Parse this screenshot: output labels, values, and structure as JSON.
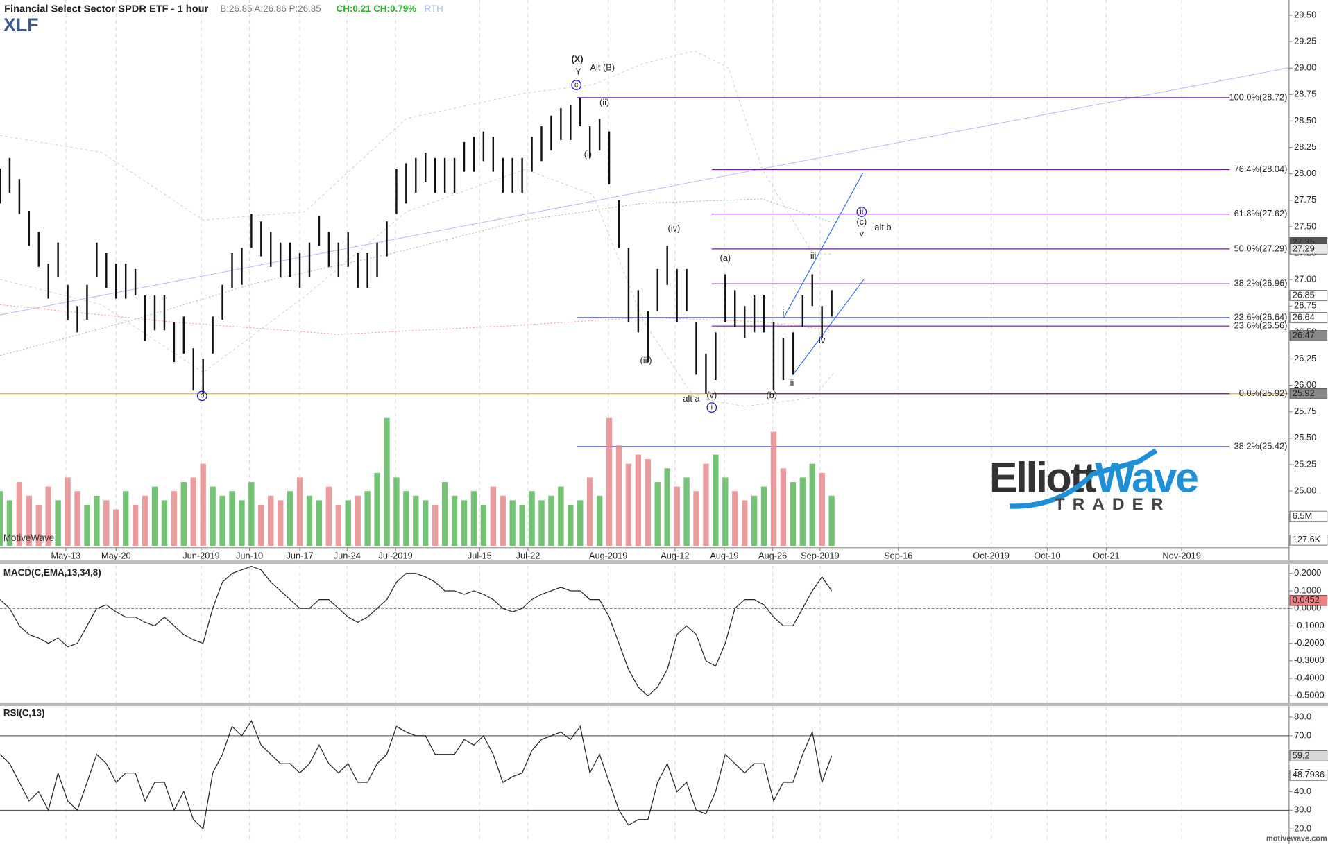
{
  "chart_data": [
    {
      "type": "ohlc",
      "title": "Financial Select Sector SPDR ETF - 1 hour",
      "symbol": "XLF",
      "quote": "B:26.85 A:26.86 P:26.85",
      "change": "CH:0.21 CH:0.79%",
      "session": "RTH",
      "watermark": "MotiveWave",
      "footer": "motivewave.com",
      "logo": {
        "text1": "Elliott",
        "text2": "Wave",
        "tagline": "TRADER"
      },
      "bar_color": "#111111",
      "high": [
        28.05,
        28.15,
        27.95,
        27.65,
        27.45,
        27.15,
        27.35,
        26.95,
        26.75,
        26.95,
        27.35,
        27.25,
        27.15,
        27.15,
        27.1,
        26.85,
        26.85,
        26.85,
        26.6,
        26.65,
        26.35,
        26.25,
        26.65,
        26.95,
        27.25,
        27.3,
        27.62,
        27.55,
        27.45,
        27.35,
        27.35,
        27.25,
        27.35,
        27.6,
        27.45,
        27.35,
        27.45,
        27.25,
        27.25,
        27.35,
        27.55,
        28.05,
        28.1,
        28.15,
        28.2,
        28.15,
        28.15,
        28.15,
        28.3,
        28.35,
        28.4,
        28.35,
        28.15,
        28.15,
        28.15,
        28.35,
        28.45,
        28.55,
        28.62,
        28.65,
        28.72,
        28.45,
        28.52,
        28.4,
        27.75,
        27.3,
        26.9,
        26.7,
        27.1,
        27.32,
        27.1,
        27.1,
        26.6,
        26.3,
        26.5,
        27.05,
        26.9,
        26.75,
        26.85,
        26.85,
        26.6,
        26.45,
        26.5,
        26.85,
        27.05,
        26.75,
        26.9
      ],
      "low": [
        27.72,
        27.82,
        27.62,
        27.32,
        27.12,
        26.82,
        27.02,
        26.62,
        26.5,
        26.62,
        27.02,
        26.92,
        26.82,
        26.82,
        26.85,
        26.42,
        26.52,
        26.52,
        26.22,
        26.3,
        25.95,
        25.92,
        26.3,
        26.62,
        26.92,
        26.95,
        27.3,
        27.22,
        27.12,
        27.02,
        27.02,
        26.92,
        27.02,
        27.32,
        27.12,
        27.02,
        27.12,
        26.92,
        26.92,
        27.02,
        27.22,
        27.62,
        27.72,
        27.82,
        27.92,
        27.82,
        27.82,
        27.82,
        28.02,
        28.02,
        28.12,
        28.02,
        27.82,
        27.82,
        27.82,
        28.02,
        28.12,
        28.22,
        28.32,
        28.32,
        28.45,
        28.15,
        28.22,
        27.9,
        27.3,
        26.6,
        26.5,
        26.22,
        26.7,
        26.95,
        26.6,
        26.7,
        26.1,
        25.92,
        26.05,
        26.6,
        26.55,
        26.45,
        26.5,
        26.5,
        25.95,
        26.05,
        26.1,
        26.55,
        26.75,
        26.45,
        26.65
      ],
      "volume": [
        12,
        10,
        14,
        11,
        9,
        13,
        10,
        15,
        12,
        9,
        11,
        10,
        8,
        12,
        9,
        11,
        13,
        10,
        12,
        14,
        15,
        18,
        13,
        11,
        12,
        10,
        14,
        9,
        11,
        10,
        12,
        15,
        11,
        10,
        13,
        9,
        10,
        11,
        12,
        16,
        28,
        15,
        12,
        11,
        10,
        9,
        14,
        11,
        10,
        12,
        9,
        13,
        11,
        10,
        9,
        12,
        10,
        11,
        13,
        9,
        10,
        15,
        11,
        28,
        22,
        18,
        20,
        19,
        14,
        17,
        13,
        15,
        12,
        18,
        20,
        15,
        12,
        10,
        11,
        13,
        25,
        17,
        14,
        15,
        18,
        16,
        11
      ],
      "volume_up_color": "#5cb85c",
      "volume_down_color": "#e88a8a",
      "vlim": [
        0,
        30
      ],
      "xlim": [
        0,
        133.3
      ],
      "xticks": [
        {
          "value": 6.8,
          "label": "May-13"
        },
        {
          "value": 12,
          "label": "May-20"
        },
        {
          "value": 20.8,
          "label": "Jun-2019"
        },
        {
          "value": 25.8,
          "label": "Jun-10"
        },
        {
          "value": 31,
          "label": "Jun-17"
        },
        {
          "value": 35.9,
          "label": "Jun-24"
        },
        {
          "value": 40.9,
          "label": "Jul-2019"
        },
        {
          "value": 49.6,
          "label": "Jul-15"
        },
        {
          "value": 54.6,
          "label": "Jul-22"
        },
        {
          "value": 62.9,
          "label": "Aug-2019"
        },
        {
          "value": 69.8,
          "label": "Aug-12"
        },
        {
          "value": 74.9,
          "label": "Aug-19"
        },
        {
          "value": 79.9,
          "label": "Aug-26"
        },
        {
          "value": 84.8,
          "label": "Sep-2019"
        },
        {
          "value": 92.9,
          "label": "Sep-16"
        },
        {
          "value": 102.5,
          "label": "Oct-2019"
        },
        {
          "value": 108.3,
          "label": "Oct-10"
        },
        {
          "value": 114.4,
          "label": "Oct-21"
        },
        {
          "value": 122.2,
          "label": "Nov-2019"
        }
      ],
      "ylim": [
        24.48,
        29.644
      ],
      "yticks": [
        24.75,
        {
          "value": 25,
          "label": "25.00"
        },
        25.25,
        {
          "value": 25.5,
          "label": "25.50"
        },
        25.75,
        {
          "value": 26,
          "label": "26.00"
        },
        26.25,
        {
          "value": 26.5,
          "label": "26.50"
        },
        26.75,
        {
          "value": 27,
          "label": "27.00"
        },
        27.25,
        {
          "value": 27.5,
          "label": "27.50"
        },
        27.75,
        {
          "value": 28,
          "label": "28.00"
        },
        28.25,
        {
          "value": 28.5,
          "label": "28.50"
        },
        28.75,
        {
          "value": 29,
          "label": "29.00"
        },
        29.25,
        {
          "value": 29.5,
          "label": "29.50"
        }
      ],
      "fib": [
        {
          "label": "100.0%(28.72)",
          "value": 28.72,
          "start": 59.7,
          "color": "#6a1b9a"
        },
        {
          "label": "76.4%(28.04)",
          "value": 28.04,
          "start": 73.6,
          "color": "#6a1b9a"
        },
        {
          "label": "61.8%(27.62)",
          "value": 27.62,
          "start": 73.6,
          "color": "#6a1b9a"
        },
        {
          "label": "50.0%(27.29)",
          "value": 27.29,
          "start": 73.6,
          "color": "#6a1b9a"
        },
        {
          "label": "38.2%(26.96)",
          "value": 26.96,
          "start": 73.6,
          "color": "#6a1b9a"
        },
        {
          "label": "23.6%(26.64)",
          "value": 26.64,
          "start": 59.7,
          "color": "#2233cc"
        },
        {
          "label": "23.6%(26.56)",
          "value": 26.56,
          "start": 73.6,
          "color": "#6a1b9a"
        },
        {
          "label": "0.0%(25.92)",
          "value": 25.92,
          "start": 73.6,
          "color": "#6a1b9a"
        },
        {
          "label": "38.2%(25.42)",
          "value": 25.42,
          "start": 59.7,
          "color": "#2233cc"
        }
      ],
      "support_line": {
        "value": 25.92,
        "color": "#f2b400"
      },
      "annotations": [
        {
          "text": "(X)",
          "x": 59.7,
          "y": 29.08,
          "color": "#1010cc",
          "circled": false
        },
        {
          "text": "Y",
          "x": 59.8,
          "y": 28.96,
          "color": "#1010cc",
          "circled": false
        },
        {
          "text": "c",
          "x": 59.6,
          "y": 28.84,
          "color": "#1010cc",
          "circled": true
        },
        {
          "text": "Alt (B)",
          "x": 62.3,
          "y": 29.0,
          "color": "#e01010",
          "circled": false
        },
        {
          "text": "(ii)",
          "x": 62.5,
          "y": 28.67,
          "color": "#1010cc",
          "circled": false
        },
        {
          "text": "(i)",
          "x": 60.8,
          "y": 28.18,
          "color": "#1010cc",
          "circled": false
        },
        {
          "text": "(iv)",
          "x": 69.7,
          "y": 27.48,
          "color": "#1010cc",
          "circled": false
        },
        {
          "text": "(iii)",
          "x": 66.8,
          "y": 26.23,
          "color": "#1010cc",
          "circled": false
        },
        {
          "text": "(a)",
          "x": 75.0,
          "y": 27.2,
          "color": "#1010cc",
          "circled": false
        },
        {
          "text": "(v)",
          "x": 73.6,
          "y": 25.9,
          "color": "#1010cc",
          "circled": false
        },
        {
          "text": "i",
          "x": 73.6,
          "y": 25.79,
          "color": "#1010cc",
          "circled": true
        },
        {
          "text": "alt a",
          "x": 71.5,
          "y": 25.87,
          "color": "#e01010",
          "circled": false
        },
        {
          "text": "(b)",
          "x": 79.8,
          "y": 25.9,
          "color": "#1010cc",
          "circled": false
        },
        {
          "text": "ii",
          "x": 81.9,
          "y": 26.02,
          "color": "#1010cc",
          "circled": false
        },
        {
          "text": "i",
          "x": 81.0,
          "y": 26.68,
          "color": "#1010cc",
          "circled": false
        },
        {
          "text": "iii",
          "x": 84.1,
          "y": 27.22,
          "color": "#1010cc",
          "circled": false
        },
        {
          "text": "iv",
          "x": 85.0,
          "y": 26.42,
          "color": "#1010cc",
          "circled": false
        },
        {
          "text": "ii",
          "x": 89.1,
          "y": 27.64,
          "color": "#1010cc",
          "circled": true
        },
        {
          "text": "(c)",
          "x": 89.1,
          "y": 27.54,
          "color": "#1010cc",
          "circled": false
        },
        {
          "text": "v",
          "x": 89.1,
          "y": 27.43,
          "color": "#1010cc",
          "circled": false
        },
        {
          "text": "alt b",
          "x": 91.3,
          "y": 27.49,
          "color": "#e01010",
          "circled": false
        },
        {
          "text": "b",
          "x": 20.9,
          "y": 25.9,
          "color": "#1010cc",
          "circled": true
        }
      ],
      "markers": [
        {
          "value": 27.35,
          "fill": "#555555",
          "text_color": "#ffffff"
        },
        {
          "value": 27.29,
          "fill": "#e8e8e8",
          "text_color": "#333333"
        },
        {
          "value": 26.85,
          "fill": "#ffffff",
          "text_color": "#111111"
        },
        {
          "value": 26.64,
          "fill": "#ffffff",
          "text_color": "#111111"
        },
        {
          "value": 26.47,
          "fill": "#888888",
          "text_color": "#ffffff"
        },
        {
          "value": 25.92,
          "fill": "#888888",
          "text_color": "#ffffff"
        }
      ],
      "volume_markers": [
        {
          "value": 6.5,
          "label": "6.5M"
        },
        {
          "value": 0.1276,
          "label": "127.6K"
        }
      ]
    },
    {
      "type": "line",
      "title": "MACD(C,EMA,13,34,8)",
      "color": "#222222",
      "values": [
        0.05,
        0,
        -0.1,
        -0.15,
        -0.17,
        -0.2,
        -0.17,
        -0.22,
        -0.2,
        -0.1,
        0,
        0.02,
        -0.02,
        -0.05,
        -0.05,
        -0.08,
        -0.1,
        -0.05,
        -0.1,
        -0.15,
        -0.18,
        -0.2,
        0,
        0.15,
        0.2,
        0.22,
        0.24,
        0.22,
        0.15,
        0.1,
        0.05,
        0,
        0,
        0.05,
        0.05,
        0,
        -0.05,
        -0.08,
        -0.05,
        0,
        0.05,
        0.15,
        0.2,
        0.2,
        0.18,
        0.15,
        0.1,
        0.1,
        0.08,
        0.1,
        0.08,
        0.05,
        0,
        -0.02,
        0,
        0.05,
        0.08,
        0.1,
        0.12,
        0.1,
        0.1,
        0.05,
        0.05,
        -0.05,
        -0.2,
        -0.35,
        -0.45,
        -0.5,
        -0.45,
        -0.35,
        -0.15,
        -0.1,
        -0.15,
        -0.3,
        -0.33,
        -0.2,
        0,
        0.05,
        0.05,
        0.02,
        -0.05,
        -0.1,
        -0.1,
        0,
        0.1,
        0.18,
        0.1
      ],
      "ylim": [
        -0.539,
        0.245
      ],
      "yticks": [
        {
          "value": 0.2,
          "label": "0.2000"
        },
        {
          "value": 0.1,
          "label": "0.1000"
        },
        {
          "value": 0,
          "label": "0.0000"
        },
        {
          "value": -0.1,
          "label": "-0.1000"
        },
        {
          "value": -0.2,
          "label": "-0.2000"
        },
        {
          "value": -0.3,
          "label": "-0.3000"
        },
        {
          "value": -0.4,
          "label": "-0.4000"
        },
        {
          "value": -0.5,
          "label": "-0.5000"
        }
      ],
      "hlines": [
        0
      ],
      "markers": [
        {
          "value": 0.0452,
          "fill": "#f08080",
          "text_color": "#111111"
        }
      ]
    },
    {
      "type": "line",
      "title": "RSI(C,13)",
      "color": "#222222",
      "values": [
        60,
        55,
        45,
        35,
        40,
        30,
        50,
        35,
        30,
        45,
        60,
        55,
        45,
        50,
        50,
        35,
        45,
        45,
        30,
        40,
        25,
        20,
        50,
        60,
        75,
        70,
        78,
        65,
        60,
        55,
        55,
        50,
        55,
        65,
        55,
        50,
        55,
        45,
        45,
        55,
        60,
        75,
        72,
        70,
        70,
        60,
        60,
        60,
        68,
        65,
        70,
        60,
        45,
        48,
        50,
        62,
        68,
        70,
        72,
        68,
        75,
        50,
        60,
        45,
        30,
        22,
        25,
        25,
        45,
        55,
        40,
        45,
        30,
        28,
        40,
        60,
        55,
        50,
        55,
        55,
        35,
        45,
        45,
        60,
        72,
        45,
        59.2
      ],
      "ylim": [
        13.7,
        85.5
      ],
      "yticks": [
        {
          "value": 20,
          "label": "20.0"
        },
        {
          "value": 30,
          "label": "30.0"
        },
        {
          "value": 40,
          "label": "40.0"
        },
        {
          "value": 50,
          "label": "50.0"
        },
        {
          "value": 60,
          "label": "60.0"
        },
        {
          "value": 70,
          "label": "70.0"
        },
        {
          "value": 80,
          "label": "80.0"
        }
      ],
      "hlines": [
        70,
        30
      ],
      "markers": [
        {
          "value": 59.2,
          "fill": "#d8d8d8",
          "text_color": "#111111"
        },
        {
          "value": 48.7936,
          "fill": "#ffffff",
          "text_color": "#111111"
        }
      ]
    }
  ]
}
